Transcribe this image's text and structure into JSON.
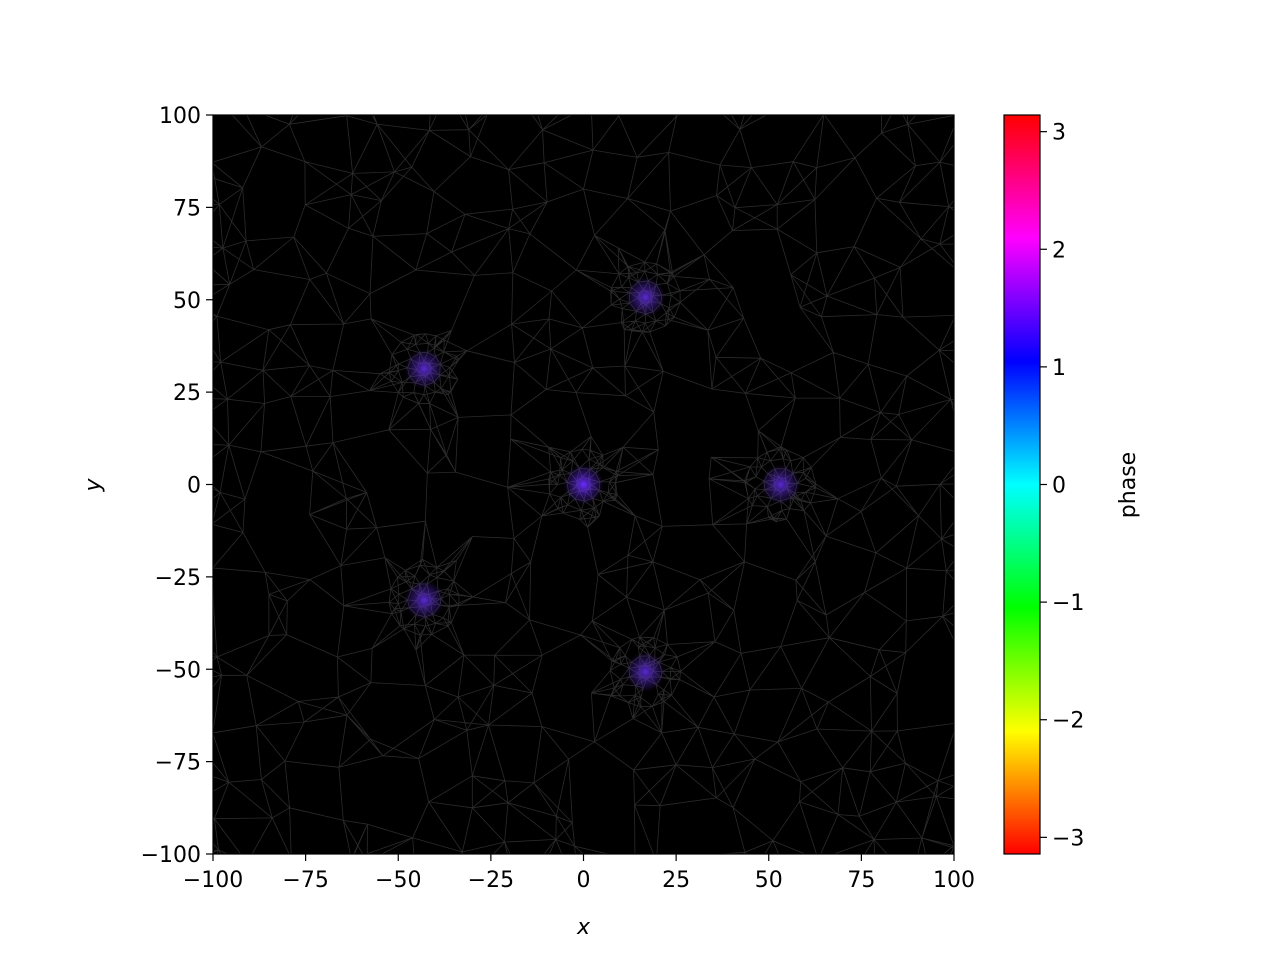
{
  "chart_data": {
    "type": "heatmap",
    "description_type": "mesh phase plot",
    "xlabel": "x",
    "ylabel": "y",
    "xlim": [
      -100,
      100
    ],
    "ylim": [
      -100,
      100
    ],
    "xticks": [
      -100,
      -75,
      -50,
      -25,
      0,
      25,
      50,
      75,
      100
    ],
    "yticks": [
      -100,
      -75,
      -50,
      -25,
      0,
      25,
      50,
      75,
      100
    ],
    "xtick_labels": [
      "−100",
      "−75",
      "−50",
      "−25",
      "0",
      "25",
      "50",
      "75",
      "100"
    ],
    "ytick_labels": [
      "−100",
      "−75",
      "−50",
      "−25",
      "0",
      "25",
      "50",
      "75",
      "100"
    ],
    "background_color": "#000000",
    "mesh_color": "#3a3a3a",
    "vortices": [
      {
        "x": 0,
        "y": 0,
        "color": "#6a2cff"
      },
      {
        "x": 16.7,
        "y": 50.7,
        "color": "#5a2ad0"
      },
      {
        "x": -43.0,
        "y": 31.3,
        "color": "#5a2ad0"
      },
      {
        "x": -43.0,
        "y": -31.3,
        "color": "#5a2ad0"
      },
      {
        "x": 16.7,
        "y": -50.7,
        "color": "#5a2ad0"
      },
      {
        "x": 53.2,
        "y": 0,
        "color": "#5a2ad0"
      }
    ],
    "colorbar": {
      "label": "phase",
      "colormap": "hsv",
      "range": [
        -3.14159,
        3.14159
      ],
      "ticks": [
        3,
        2,
        1,
        0,
        -1,
        -2,
        -3
      ],
      "tick_labels": [
        "3",
        "2",
        "1",
        "0",
        "−1",
        "−2",
        "−3"
      ]
    }
  }
}
